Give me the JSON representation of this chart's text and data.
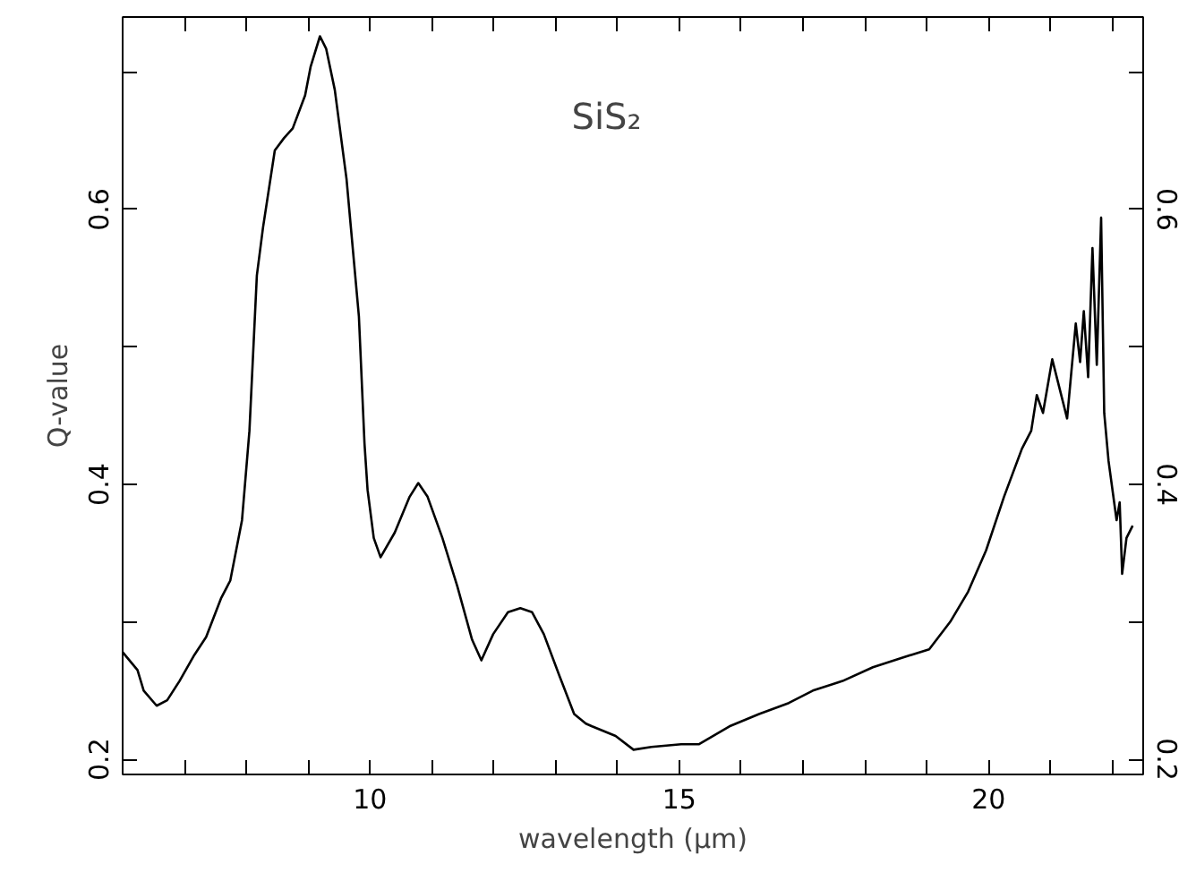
{
  "chart_data": {
    "type": "line",
    "xlabel": "wavelength (μm)",
    "ylabel": "Q-value",
    "annotations": [
      "SiS₂"
    ],
    "xlim": [
      6,
      22.5
    ],
    "ylim": [
      0.189,
      0.74
    ],
    "y2lim": [
      0.189,
      0.74
    ],
    "xticks": [
      {
        "value": 6,
        "label": null
      },
      {
        "value": 7,
        "label": null
      },
      {
        "value": 8,
        "label": null
      },
      {
        "value": 9,
        "label": null
      },
      10,
      {
        "value": 11,
        "label": null
      },
      {
        "value": 12,
        "label": null
      },
      {
        "value": 13,
        "label": null
      },
      {
        "value": 14,
        "label": null
      },
      15,
      {
        "value": 16,
        "label": null
      },
      {
        "value": 17,
        "label": null
      },
      {
        "value": 18,
        "label": null
      },
      {
        "value": 19,
        "label": null
      },
      20,
      {
        "value": 21,
        "label": null
      },
      {
        "value": 22,
        "label": null
      }
    ],
    "yticks": [
      0.2,
      {
        "value": 0.3,
        "label": null
      },
      0.4,
      {
        "value": 0.5,
        "label": null
      },
      0.6,
      {
        "value": 0.7,
        "label": null
      }
    ],
    "y2ticks": [
      0.2,
      {
        "value": 0.3,
        "label": null
      },
      0.4,
      {
        "value": 0.5,
        "label": null
      },
      0.6,
      {
        "value": 0.7,
        "label": null
      }
    ],
    "grid": false,
    "marker": "none",
    "line_style": "solid",
    "series": [
      {
        "color": "#000000",
        "x": [
          6.0,
          6.24,
          6.34,
          6.55,
          6.72,
          6.92,
          7.16,
          7.35,
          7.59,
          7.74,
          7.93,
          8.05,
          8.17,
          8.27,
          8.46,
          8.61,
          8.75,
          8.95,
          9.04,
          9.19,
          9.29,
          9.43,
          9.62,
          9.82,
          9.91,
          9.96,
          10.06,
          10.17,
          10.4,
          10.64,
          10.78,
          10.93,
          11.17,
          11.41,
          11.65,
          11.8,
          11.99,
          12.23,
          12.43,
          12.62,
          12.81,
          13.06,
          13.3,
          13.49,
          13.59,
          13.97,
          14.26,
          14.55,
          15.03,
          15.32,
          15.81,
          16.29,
          16.77,
          17.16,
          17.64,
          18.13,
          18.61,
          19.04,
          19.38,
          19.67,
          19.96,
          20.25,
          20.54,
          20.69,
          20.78,
          20.88,
          21.03,
          21.27,
          21.41,
          21.48,
          21.54,
          21.61,
          21.68,
          21.75,
          21.82,
          21.87,
          21.94,
          22.07,
          22.12,
          22.16,
          22.23,
          22.33
        ],
        "values": [
          0.278,
          0.265,
          0.25,
          0.239,
          0.243,
          0.257,
          0.276,
          0.289,
          0.317,
          0.33,
          0.374,
          0.439,
          0.552,
          0.587,
          0.643,
          0.652,
          0.659,
          0.683,
          0.704,
          0.726,
          0.717,
          0.687,
          0.622,
          0.522,
          0.43,
          0.396,
          0.361,
          0.347,
          0.365,
          0.391,
          0.401,
          0.391,
          0.361,
          0.326,
          0.287,
          0.272,
          0.291,
          0.307,
          0.31,
          0.307,
          0.291,
          0.261,
          0.233,
          0.226,
          0.224,
          0.217,
          0.207,
          0.209,
          0.211,
          0.211,
          0.224,
          0.233,
          0.241,
          0.25,
          0.257,
          0.267,
          0.274,
          0.28,
          0.3,
          0.322,
          0.352,
          0.391,
          0.426,
          0.439,
          0.465,
          0.452,
          0.491,
          0.448,
          0.517,
          0.489,
          0.526,
          0.478,
          0.572,
          0.487,
          0.594,
          0.452,
          0.417,
          0.374,
          0.387,
          0.335,
          0.361,
          0.37
        ]
      }
    ]
  }
}
